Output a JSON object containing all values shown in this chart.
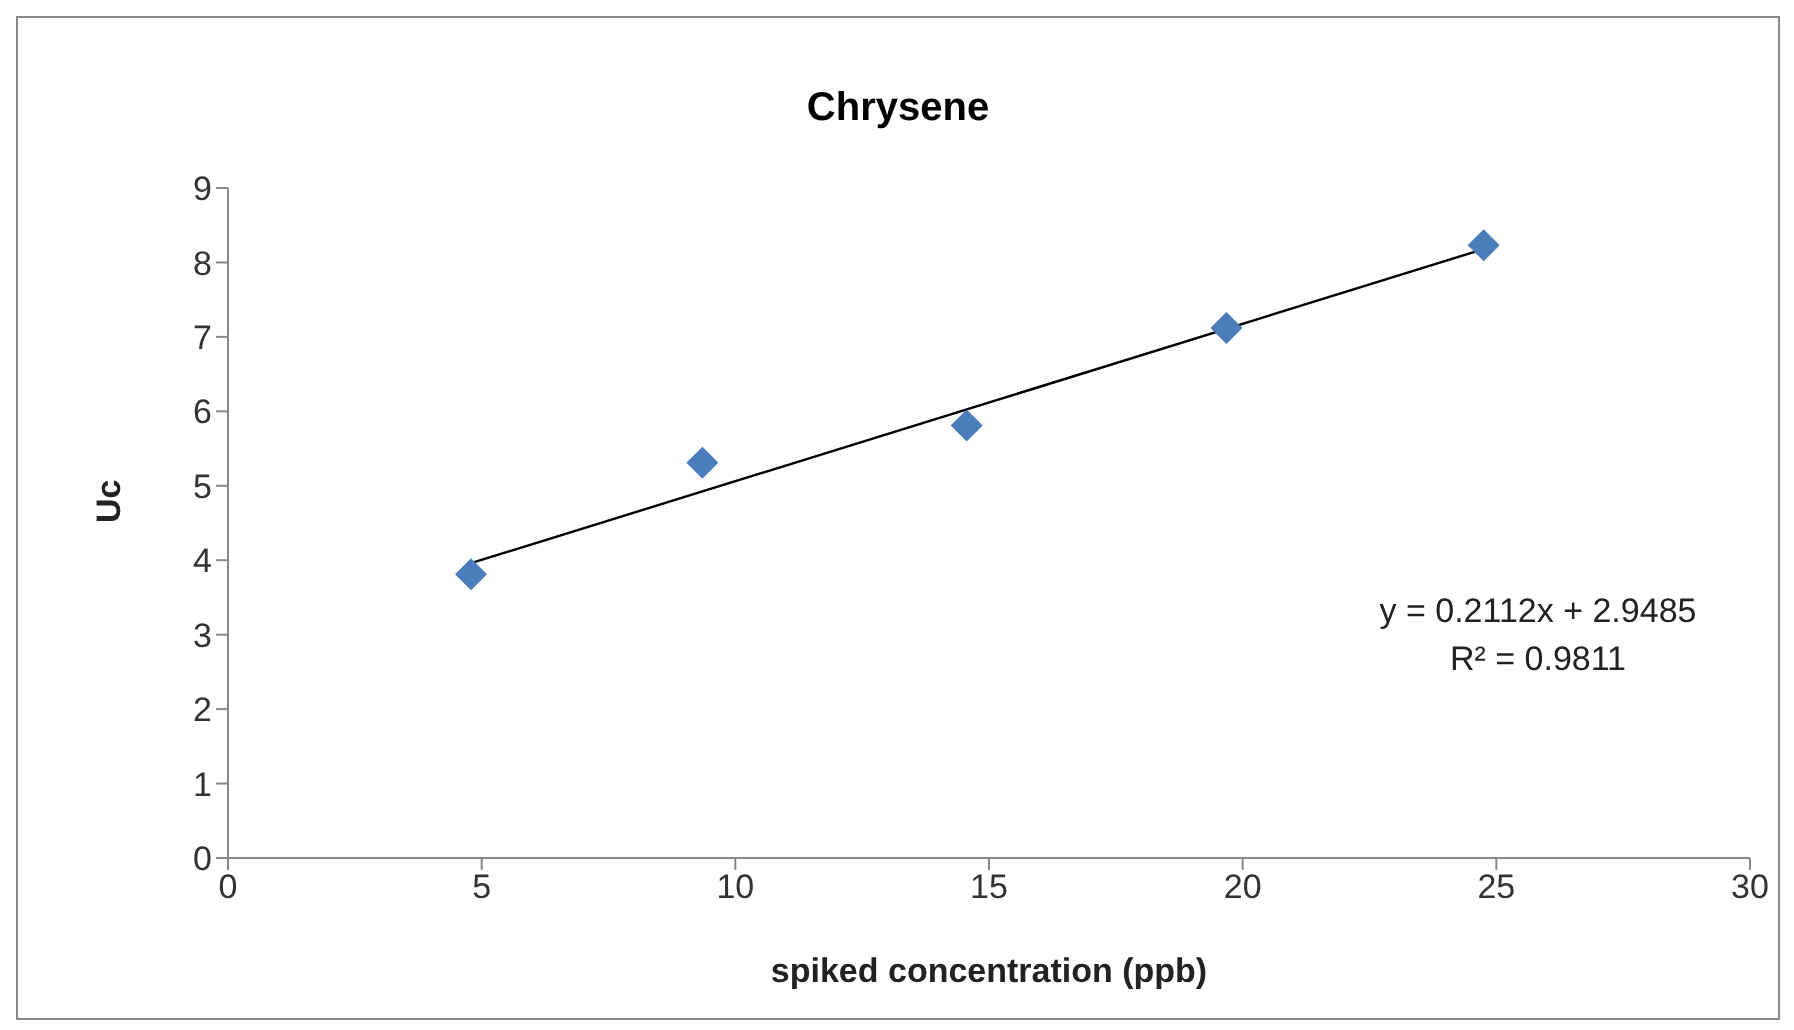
{
  "chart_data": {
    "type": "scatter",
    "title": "Chrysene",
    "xlabel": "spiked concentration (ppb)",
    "ylabel": "Uc",
    "xlim": [
      0,
      30
    ],
    "xticks": [
      0,
      5,
      10,
      15,
      20,
      25,
      30
    ],
    "ylim": [
      0,
      9
    ],
    "yticks": [
      0,
      1,
      2,
      3,
      4,
      5,
      6,
      7,
      8,
      9
    ],
    "x": [
      4.79,
      9.35,
      14.56,
      19.68,
      24.75
    ],
    "series": [
      {
        "color": "#4a7ebb",
        "marker": "diamond",
        "values": [
          3.81,
          5.31,
          5.81,
          7.12,
          8.23
        ]
      },
      {
        "type": "line",
        "color": "#000000",
        "marker": "none",
        "x": [
          4.79,
          24.75
        ],
        "values": [
          3.96,
          8.18
        ]
      }
    ],
    "annotations": [
      "y = 0.2112x + 2.9485",
      "R² = 0.9811"
    ]
  }
}
